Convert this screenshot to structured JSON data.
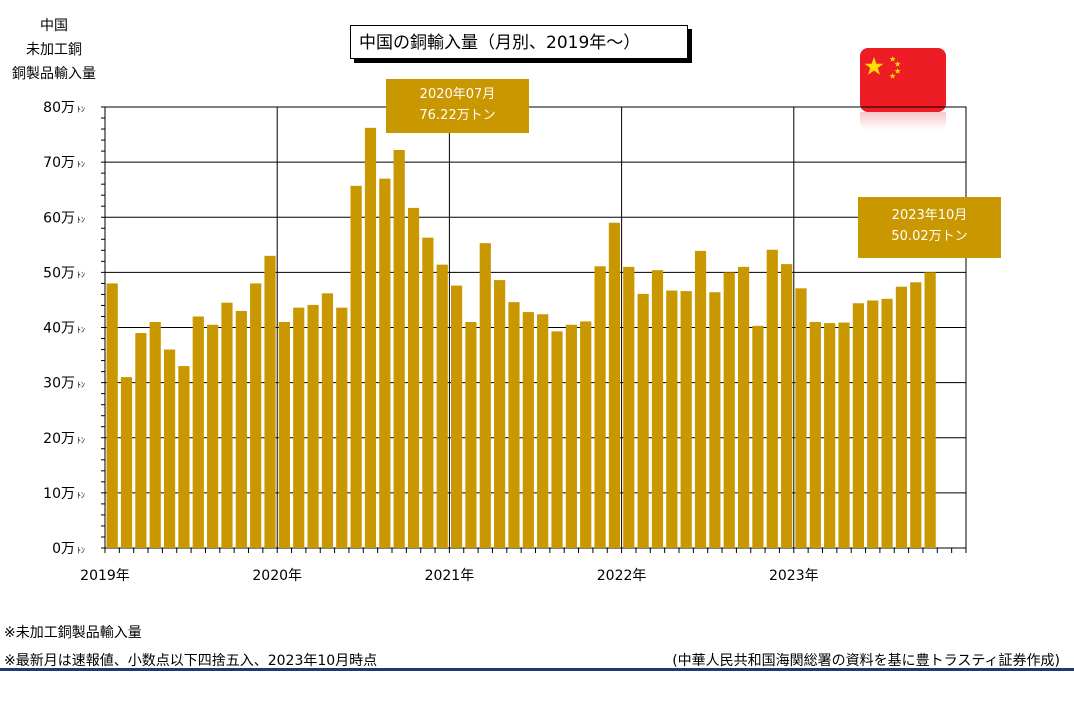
{
  "header": {
    "ylabel_lines": [
      "中国",
      "未加工銅",
      "銅製品輸入量"
    ],
    "title": "中国の銅輸入量（月別、2019年～）"
  },
  "callouts": {
    "peak": {
      "line1": "2020年07月",
      "line2": "76.22万トン"
    },
    "latest": {
      "line1": "2023年10月",
      "line2": "50.02万トン"
    }
  },
  "footer": {
    "note1": "※未加工銅製品輸入量",
    "note2": "※最新月は速報値、小数点以下四捨五入、2023年10月時点",
    "source": "(中華人民共和国海関総署の資料を基に豊トラスティ証券作成)"
  },
  "colors": {
    "bar": "#c99700",
    "flag_red": "#ee1c25",
    "flag_star": "#ffde00",
    "rule": "#1f3a6e"
  },
  "flag_icon": "china-flag-icon",
  "chart_data": {
    "type": "bar",
    "title": "中国の銅輸入量（月別、2019年～）",
    "ylabel": "中国 未加工銅 銅製品輸入量",
    "yunit": "万トン",
    "ylim": [
      0,
      80
    ],
    "yticks": [
      0,
      10,
      20,
      30,
      40,
      50,
      60,
      70,
      80
    ],
    "ytick_labels": [
      "0万ﾄﾝ",
      "10万ﾄﾝ",
      "20万ﾄﾝ",
      "30万ﾄﾝ",
      "40万ﾄﾝ",
      "50万ﾄﾝ",
      "60万ﾄﾝ",
      "70万ﾄﾝ",
      "80万ﾄﾝ"
    ],
    "xtick_labels": [
      "2019年",
      "2020年",
      "2021年",
      "2022年",
      "2023年"
    ],
    "grid": true,
    "categories": [
      "2019-01",
      "2019-02",
      "2019-03",
      "2019-04",
      "2019-05",
      "2019-06",
      "2019-07",
      "2019-08",
      "2019-09",
      "2019-10",
      "2019-11",
      "2019-12",
      "2020-01",
      "2020-02",
      "2020-03",
      "2020-04",
      "2020-05",
      "2020-06",
      "2020-07",
      "2020-08",
      "2020-09",
      "2020-10",
      "2020-11",
      "2020-12",
      "2021-01",
      "2021-02",
      "2021-03",
      "2021-04",
      "2021-05",
      "2021-06",
      "2021-07",
      "2021-08",
      "2021-09",
      "2021-10",
      "2021-11",
      "2021-12",
      "2022-01",
      "2022-02",
      "2022-03",
      "2022-04",
      "2022-05",
      "2022-06",
      "2022-07",
      "2022-08",
      "2022-09",
      "2022-10",
      "2022-11",
      "2022-12",
      "2023-01",
      "2023-02",
      "2023-03",
      "2023-04",
      "2023-05",
      "2023-06",
      "2023-07",
      "2023-08",
      "2023-09",
      "2023-10"
    ],
    "values": [
      48,
      31,
      39,
      41,
      36,
      33,
      42,
      40.5,
      44.5,
      43,
      48,
      53,
      41,
      43.6,
      44.1,
      46.2,
      43.6,
      65.7,
      76.22,
      67,
      72.2,
      61.7,
      56.3,
      51.4,
      47.6,
      41,
      55.3,
      48.6,
      44.6,
      42.8,
      42.4,
      39.3,
      40.5,
      41.1,
      51.1,
      59,
      51,
      46.1,
      50.4,
      46.7,
      46.6,
      53.9,
      46.4,
      50,
      51,
      40.3,
      54.1,
      51.5,
      47.1,
      41,
      40.8,
      40.9,
      44.4,
      44.9,
      45.2,
      47.4,
      48.2,
      50.02
    ]
  }
}
